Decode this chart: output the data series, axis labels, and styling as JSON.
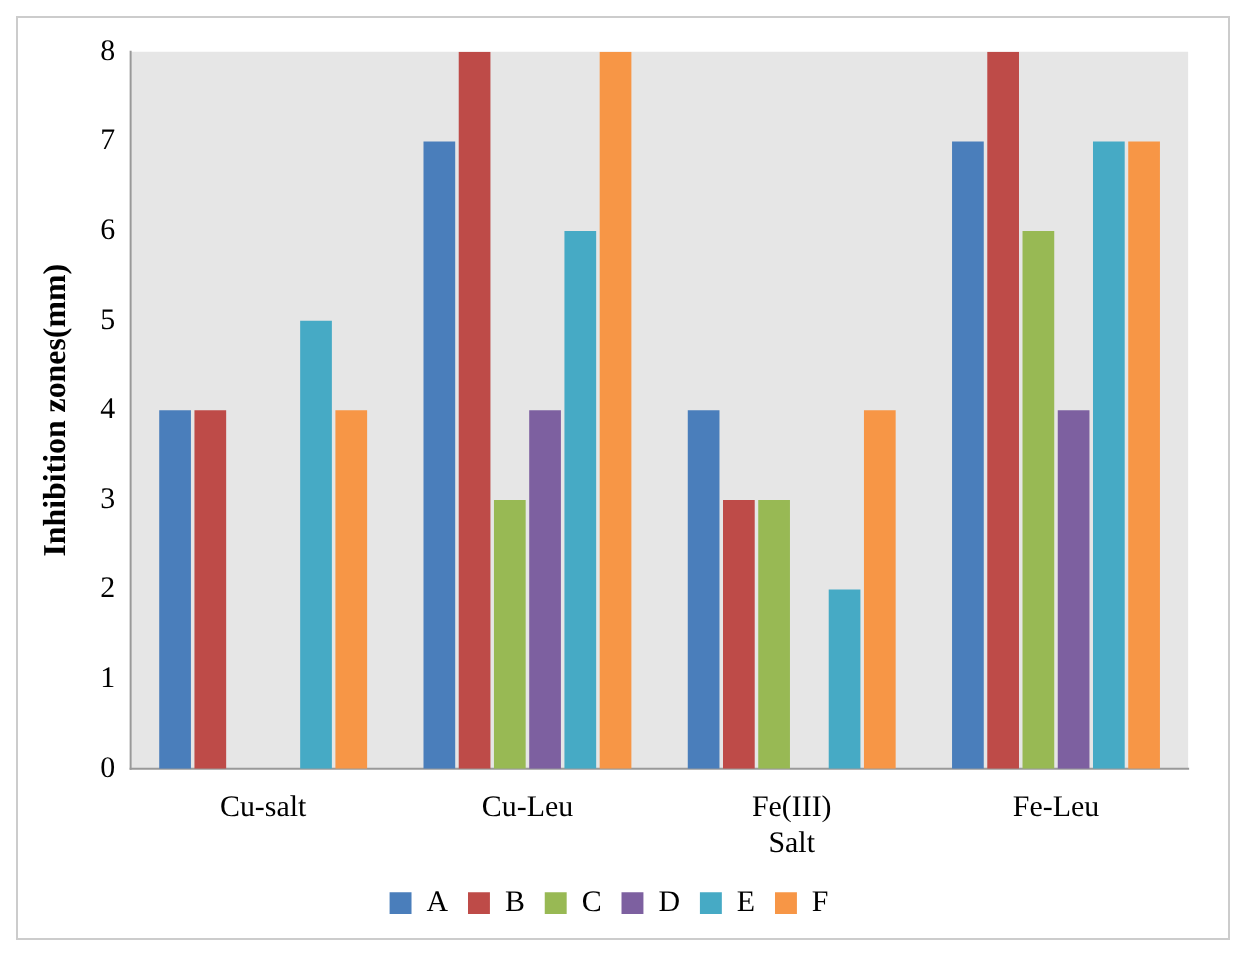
{
  "chart_data": {
    "type": "bar",
    "ylabel": "Inhibition zones(mm)",
    "categories": [
      "Cu-salt",
      "Cu-Leu",
      "Fe(III) Salt",
      "Fe-Leu"
    ],
    "series": [
      {
        "name": "A",
        "color": "#4a7ebb",
        "values": [
          4,
          7,
          4,
          7
        ]
      },
      {
        "name": "B",
        "color": "#be4b48",
        "values": [
          4,
          8,
          3,
          8
        ]
      },
      {
        "name": "C",
        "color": "#98b954",
        "values": [
          0,
          3,
          3,
          6
        ]
      },
      {
        "name": "D",
        "color": "#7d60a0",
        "values": [
          0,
          4,
          0,
          4
        ]
      },
      {
        "name": "E",
        "color": "#46aac5",
        "values": [
          5,
          6,
          2,
          7
        ]
      },
      {
        "name": "F",
        "color": "#f79646",
        "values": [
          4,
          8,
          4,
          7
        ]
      }
    ],
    "ylim": [
      0,
      8
    ],
    "yticks": [
      0,
      1,
      2,
      3,
      4,
      5,
      6,
      7,
      8
    ],
    "grid": false,
    "legend": "bottom"
  }
}
